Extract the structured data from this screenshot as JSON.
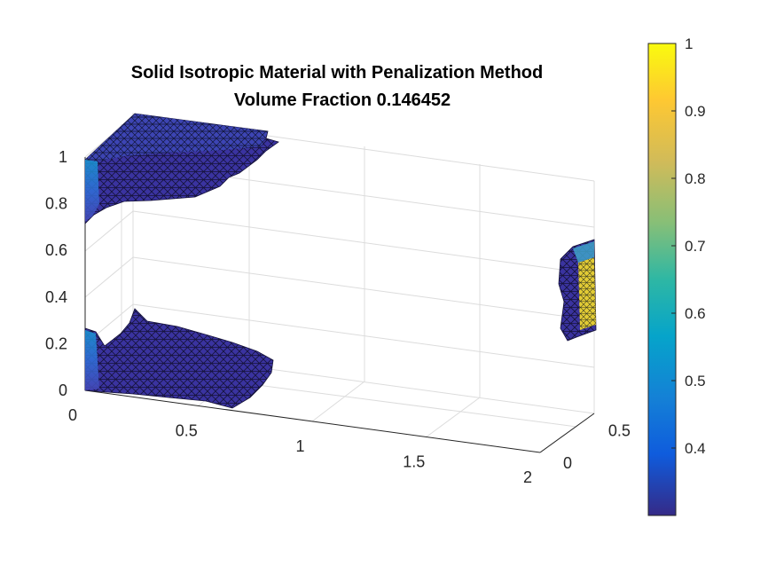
{
  "chart_data": {
    "type": "3d-surface",
    "title": [
      "Solid Isotropic Material with Penalization Method",
      "Volume Fraction 0.146452"
    ],
    "xlabel": "",
    "ylabel": "",
    "zlabel": "",
    "xlim": [
      0,
      2
    ],
    "ylim": [
      0,
      0.6
    ],
    "zlim": [
      0,
      1.1
    ],
    "x_ticks": [
      "0",
      "0.5",
      "1",
      "1.5",
      "2"
    ],
    "y_ticks": [
      "0",
      "0.5"
    ],
    "z_ticks": [
      "0",
      "0.2",
      "0.4",
      "0.6",
      "0.8",
      "1"
    ],
    "colormap": "parula",
    "colorbar": {
      "limits": [
        0.3,
        1
      ],
      "ticks": [
        "0.4",
        "0.5",
        "0.6",
        "0.7",
        "0.8",
        "0.9",
        "1"
      ],
      "stops": [
        "#352a87",
        "#0f5cdd",
        "#1481d6",
        "#06a4ca",
        "#2eb7a4",
        "#87bf77",
        "#d1bb59",
        "#fec832",
        "#f9fb0e"
      ]
    },
    "grid": "on",
    "regions": [
      {
        "name": "top-left material block",
        "value_range": [
          0.3,
          0.5
        ]
      },
      {
        "name": "bottom-left material block",
        "value_range": [
          0.3,
          0.5
        ]
      },
      {
        "name": "right load region",
        "value_range": [
          0.3,
          1.0
        ]
      }
    ]
  }
}
